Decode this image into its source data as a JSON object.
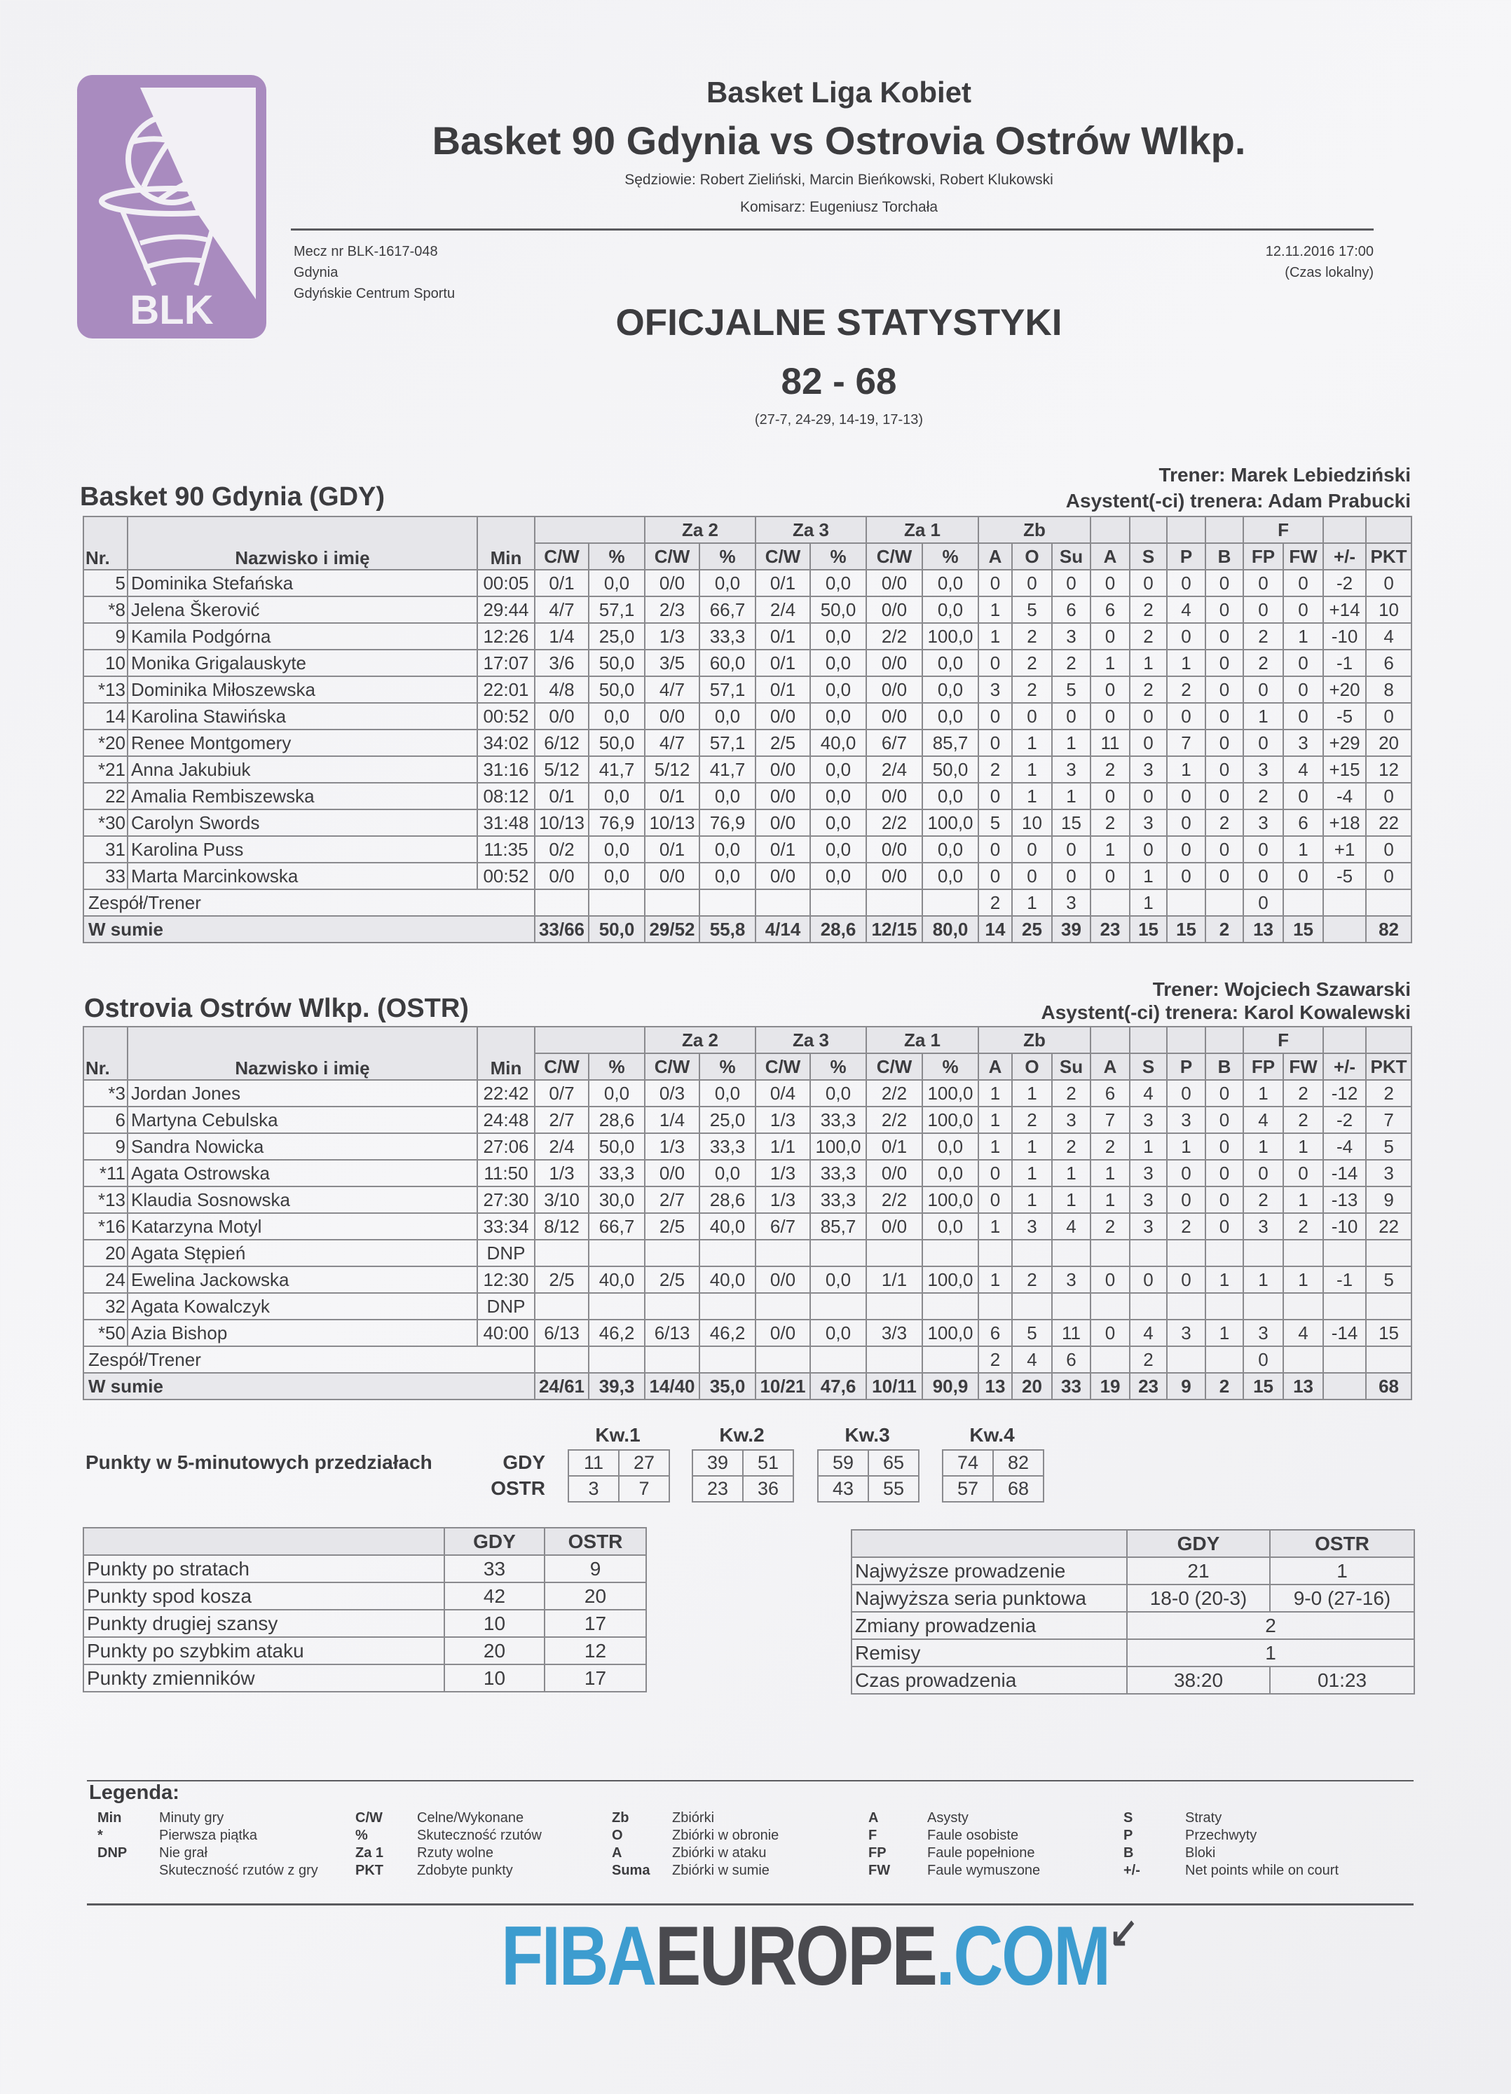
{
  "header": {
    "league": "Basket Liga Kobiet",
    "title": "Basket 90 Gdynia vs Ostrovia Ostrów Wlkp.",
    "referees": "Sędziowie: Robert Zieliński, Marcin Bieńkowski, Robert Klukowski",
    "commissioner": "Komisarz: Eugeniusz Torchała",
    "match_no": "Mecz nr BLK-1617-048",
    "city": "Gdynia",
    "venue": "Gdyńskie Centrum Sportu",
    "datetime": "12.11.2016 17:00",
    "time_note": "(Czas lokalny)",
    "doc_title": "OFICJALNE STATYSTYKI",
    "score": "82 - 68",
    "quarters": "(27-7, 24-29, 14-19, 17-13)"
  },
  "logo": {
    "text": "BLK",
    "color": "#a98bbf"
  },
  "columns": {
    "top": [
      "",
      "Za 2",
      "Za 3",
      "Za 1",
      "Zb",
      "F"
    ],
    "nr": "Nr.",
    "name": "Nazwisko i imię",
    "min": "Min",
    "sub": [
      "C/W",
      "%",
      "C/W",
      "%",
      "C/W",
      "%",
      "C/W",
      "%",
      "A",
      "O",
      "Su",
      "A",
      "S",
      "P",
      "B",
      "FP",
      "FW",
      "+/-",
      "PKT"
    ]
  },
  "teams": [
    {
      "name": "Basket 90 Gdynia (GDY)",
      "coach": "Trener: Marek Lebiedziński",
      "assistant": "Asystent(-ci) trenera: Adam Prabucki",
      "players": [
        [
          "5",
          "Dominika Stefańska",
          "00:05",
          "0/1",
          "0,0",
          "0/0",
          "0,0",
          "0/1",
          "0,0",
          "0/0",
          "0,0",
          "0",
          "0",
          "0",
          "0",
          "0",
          "0",
          "0",
          "0",
          "0",
          "-2",
          "0"
        ],
        [
          "*8",
          "Jelena Škerović",
          "29:44",
          "4/7",
          "57,1",
          "2/3",
          "66,7",
          "2/4",
          "50,0",
          "0/0",
          "0,0",
          "1",
          "5",
          "6",
          "6",
          "2",
          "4",
          "0",
          "0",
          "0",
          "+14",
          "10"
        ],
        [
          "9",
          "Kamila Podgórna",
          "12:26",
          "1/4",
          "25,0",
          "1/3",
          "33,3",
          "0/1",
          "0,0",
          "2/2",
          "100,0",
          "1",
          "2",
          "3",
          "0",
          "2",
          "0",
          "0",
          "2",
          "1",
          "-10",
          "4"
        ],
        [
          "10",
          "Monika Grigalauskyte",
          "17:07",
          "3/6",
          "50,0",
          "3/5",
          "60,0",
          "0/1",
          "0,0",
          "0/0",
          "0,0",
          "0",
          "2",
          "2",
          "1",
          "1",
          "1",
          "0",
          "2",
          "0",
          "-1",
          "6"
        ],
        [
          "*13",
          "Dominika Miłoszewska",
          "22:01",
          "4/8",
          "50,0",
          "4/7",
          "57,1",
          "0/1",
          "0,0",
          "0/0",
          "0,0",
          "3",
          "2",
          "5",
          "0",
          "2",
          "2",
          "0",
          "0",
          "0",
          "+20",
          "8"
        ],
        [
          "14",
          "Karolina Stawińska",
          "00:52",
          "0/0",
          "0,0",
          "0/0",
          "0,0",
          "0/0",
          "0,0",
          "0/0",
          "0,0",
          "0",
          "0",
          "0",
          "0",
          "0",
          "0",
          "0",
          "1",
          "0",
          "-5",
          "0"
        ],
        [
          "*20",
          "Renee Montgomery",
          "34:02",
          "6/12",
          "50,0",
          "4/7",
          "57,1",
          "2/5",
          "40,0",
          "6/7",
          "85,7",
          "0",
          "1",
          "1",
          "11",
          "0",
          "7",
          "0",
          "0",
          "3",
          "+29",
          "20"
        ],
        [
          "*21",
          "Anna Jakubiuk",
          "31:16",
          "5/12",
          "41,7",
          "5/12",
          "41,7",
          "0/0",
          "0,0",
          "2/4",
          "50,0",
          "2",
          "1",
          "3",
          "2",
          "3",
          "1",
          "0",
          "3",
          "4",
          "+15",
          "12"
        ],
        [
          "22",
          "Amalia Rembiszewska",
          "08:12",
          "0/1",
          "0,0",
          "0/1",
          "0,0",
          "0/0",
          "0,0",
          "0/0",
          "0,0",
          "0",
          "1",
          "1",
          "0",
          "0",
          "0",
          "0",
          "2",
          "0",
          "-4",
          "0"
        ],
        [
          "*30",
          "Carolyn Swords",
          "31:48",
          "10/13",
          "76,9",
          "10/13",
          "76,9",
          "0/0",
          "0,0",
          "2/2",
          "100,0",
          "5",
          "10",
          "15",
          "2",
          "3",
          "0",
          "2",
          "3",
          "6",
          "+18",
          "22"
        ],
        [
          "31",
          "Karolina Puss",
          "11:35",
          "0/2",
          "0,0",
          "0/1",
          "0,0",
          "0/1",
          "0,0",
          "0/0",
          "0,0",
          "0",
          "0",
          "0",
          "1",
          "0",
          "0",
          "0",
          "0",
          "1",
          "+1",
          "0"
        ],
        [
          "33",
          "Marta Marcinkowska",
          "00:52",
          "0/0",
          "0,0",
          "0/0",
          "0,0",
          "0/0",
          "0,0",
          "0/0",
          "0,0",
          "0",
          "0",
          "0",
          "0",
          "1",
          "0",
          "0",
          "0",
          "0",
          "-5",
          "0"
        ]
      ],
      "team_label": "Zespół/Trener",
      "team_stats": [
        "",
        "",
        "",
        "",
        "",
        "",
        "",
        "",
        "2",
        "1",
        "3",
        "",
        "1",
        "",
        "",
        "0",
        "",
        "",
        ""
      ],
      "total_label": "W sumie",
      "totals": [
        "33/66",
        "50,0",
        "29/52",
        "55,8",
        "4/14",
        "28,6",
        "12/15",
        "80,0",
        "14",
        "25",
        "39",
        "23",
        "15",
        "15",
        "2",
        "13",
        "15",
        "",
        "82"
      ]
    },
    {
      "name": "Ostrovia Ostrów Wlkp. (OSTR)",
      "coach": "Trener: Wojciech Szawarski",
      "assistant": "Asystent(-ci) trenera: Karol Kowalewski",
      "players": [
        [
          "*3",
          "Jordan Jones",
          "22:42",
          "0/7",
          "0,0",
          "0/3",
          "0,0",
          "0/4",
          "0,0",
          "2/2",
          "100,0",
          "1",
          "1",
          "2",
          "6",
          "4",
          "0",
          "0",
          "1",
          "2",
          "-12",
          "2"
        ],
        [
          "6",
          "Martyna Cebulska",
          "24:48",
          "2/7",
          "28,6",
          "1/4",
          "25,0",
          "1/3",
          "33,3",
          "2/2",
          "100,0",
          "1",
          "2",
          "3",
          "7",
          "3",
          "3",
          "0",
          "4",
          "2",
          "-2",
          "7"
        ],
        [
          "9",
          "Sandra Nowicka",
          "27:06",
          "2/4",
          "50,0",
          "1/3",
          "33,3",
          "1/1",
          "100,0",
          "0/1",
          "0,0",
          "1",
          "1",
          "2",
          "2",
          "1",
          "1",
          "0",
          "1",
          "1",
          "-4",
          "5"
        ],
        [
          "*11",
          "Agata Ostrowska",
          "11:50",
          "1/3",
          "33,3",
          "0/0",
          "0,0",
          "1/3",
          "33,3",
          "0/0",
          "0,0",
          "0",
          "1",
          "1",
          "1",
          "3",
          "0",
          "0",
          "0",
          "0",
          "-14",
          "3"
        ],
        [
          "*13",
          "Klaudia Sosnowska",
          "27:30",
          "3/10",
          "30,0",
          "2/7",
          "28,6",
          "1/3",
          "33,3",
          "2/2",
          "100,0",
          "0",
          "1",
          "1",
          "1",
          "3",
          "0",
          "0",
          "2",
          "1",
          "-13",
          "9"
        ],
        [
          "*16",
          "Katarzyna Motyl",
          "33:34",
          "8/12",
          "66,7",
          "2/5",
          "40,0",
          "6/7",
          "85,7",
          "0/0",
          "0,0",
          "1",
          "3",
          "4",
          "2",
          "3",
          "2",
          "0",
          "3",
          "2",
          "-10",
          "22"
        ],
        [
          "20",
          "Agata Stępień",
          "DNP"
        ],
        [
          "24",
          "Ewelina Jackowska",
          "12:30",
          "2/5",
          "40,0",
          "2/5",
          "40,0",
          "0/0",
          "0,0",
          "1/1",
          "100,0",
          "1",
          "2",
          "3",
          "0",
          "0",
          "0",
          "1",
          "1",
          "1",
          "-1",
          "5"
        ],
        [
          "32",
          "Agata Kowalczyk",
          "DNP"
        ],
        [
          "*50",
          "Azia Bishop",
          "40:00",
          "6/13",
          "46,2",
          "6/13",
          "46,2",
          "0/0",
          "0,0",
          "3/3",
          "100,0",
          "6",
          "5",
          "11",
          "0",
          "4",
          "3",
          "1",
          "3",
          "4",
          "-14",
          "15"
        ]
      ],
      "team_label": "Zespół/Trener",
      "team_stats": [
        "",
        "",
        "",
        "",
        "",
        "",
        "",
        "",
        "2",
        "4",
        "6",
        "",
        "2",
        "",
        "",
        "0",
        "",
        "",
        ""
      ],
      "total_label": "W sumie",
      "totals": [
        "24/61",
        "39,3",
        "14/40",
        "35,0",
        "10/21",
        "47,6",
        "10/11",
        "90,9",
        "13",
        "20",
        "33",
        "19",
        "23",
        "9",
        "2",
        "15",
        "13",
        "",
        "68"
      ]
    }
  ],
  "intervals": {
    "label": "Punkty w 5-minutowych przedziałach",
    "teams": [
      "GDY",
      "OSTR"
    ],
    "quarters": [
      {
        "name": "Kw.1",
        "GDY": [
          "11",
          "27"
        ],
        "OSTR": [
          "3",
          "7"
        ]
      },
      {
        "name": "Kw.2",
        "GDY": [
          "39",
          "51"
        ],
        "OSTR": [
          "23",
          "36"
        ]
      },
      {
        "name": "Kw.3",
        "GDY": [
          "59",
          "65"
        ],
        "OSTR": [
          "43",
          "55"
        ]
      },
      {
        "name": "Kw.4",
        "GDY": [
          "74",
          "82"
        ],
        "OSTR": [
          "57",
          "68"
        ]
      }
    ]
  },
  "points_table": {
    "headers": [
      "",
      "GDY",
      "OSTR"
    ],
    "rows": [
      [
        "Punkty po stratach",
        "33",
        "9"
      ],
      [
        "Punkty spod kosza",
        "42",
        "20"
      ],
      [
        "Punkty drugiej szansy",
        "10",
        "17"
      ],
      [
        "Punkty po szybkim ataku",
        "20",
        "12"
      ],
      [
        "Punkty zmienników",
        "10",
        "17"
      ]
    ]
  },
  "lead_table": {
    "headers": [
      "",
      "GDY",
      "OSTR"
    ],
    "rows": [
      [
        "Najwyższe prowadzenie",
        "21",
        "1"
      ],
      [
        "Najwyższa seria punktowa",
        "18-0 (20-3)",
        "9-0 (27-16)"
      ],
      [
        "Zmiany prowadzenia",
        "2"
      ],
      [
        "Remisy",
        "1"
      ],
      [
        "Czas prowadzenia",
        "38:20",
        "01:23"
      ]
    ]
  },
  "legend": {
    "title": "Legenda:",
    "columns": [
      [
        [
          "Min",
          "Minuty gry"
        ],
        [
          "*",
          "Pierwsza piątka"
        ],
        [
          "DNP",
          "Nie grał"
        ],
        [
          "",
          "Skuteczność rzutów z gry"
        ]
      ],
      [
        [
          "C/W",
          "Celne/Wykonane"
        ],
        [
          "%",
          "Skuteczność rzutów"
        ],
        [
          "Za 1",
          "Rzuty wolne"
        ],
        [
          "PKT",
          "Zdobyte punkty"
        ]
      ],
      [
        [
          "Zb",
          "Zbiórki"
        ],
        [
          "O",
          "Zbiórki w obronie"
        ],
        [
          "A",
          "Zbiórki w ataku"
        ],
        [
          "Suma",
          "Zbiórki w sumie"
        ]
      ],
      [
        [
          "A",
          "Asysty"
        ],
        [
          "F",
          "Faule osobiste"
        ],
        [
          "FP",
          "Faule popełnione"
        ],
        [
          "FW",
          "Faule wymuszone"
        ]
      ],
      [
        [
          "S",
          "Straty"
        ],
        [
          "P",
          "Przechwyty"
        ],
        [
          "B",
          "Bloki"
        ],
        [
          "+/-",
          "Net points while on court"
        ]
      ]
    ]
  },
  "footer_logo": {
    "parts": [
      "FIBA",
      "EUROPE",
      ".COM"
    ],
    "colors": [
      "#3d9ccf",
      "#4a4a4f",
      "#3d9ccf"
    ]
  }
}
